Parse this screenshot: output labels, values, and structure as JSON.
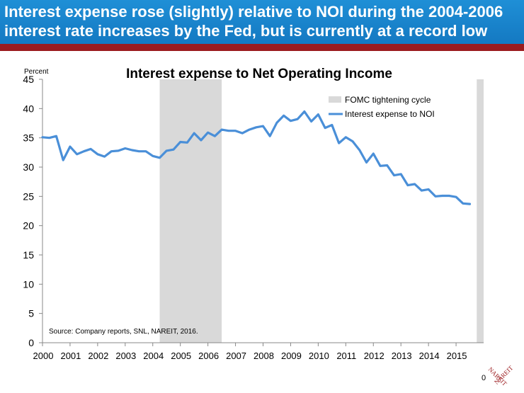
{
  "header": {
    "title": "Interest expense rose (slightly) relative to NOI during the 2004-2006\ninterest rate increases by the Fed, but is currently at a record low"
  },
  "footer": {
    "page_number": "0"
  },
  "logo": {
    "text_left": "NAREIT",
    "text_right": "NAREIT"
  },
  "colors": {
    "banner": "#1a85cf",
    "rule": "#9b1b1e",
    "line": "#4a8fd8",
    "shade": "#d9d9d9"
  },
  "chart_data": {
    "type": "line",
    "title": "Interest expense to Net Operating Income",
    "ylabel": "Percent",
    "xlabel": "",
    "source": "Source: Company reports, SNL, NAREIT, 2016.",
    "ylim": [
      0,
      45
    ],
    "yticks": [
      0,
      5,
      10,
      15,
      20,
      25,
      30,
      35,
      40,
      45
    ],
    "xlim": [
      2000,
      2016
    ],
    "xticks": [
      "2000",
      "2001",
      "2002",
      "2003",
      "2004",
      "2005",
      "2006",
      "2007",
      "2008",
      "2009",
      "2010",
      "2011",
      "2012",
      "2013",
      "2014",
      "2015"
    ],
    "legend_position": "top-right",
    "shaded_periods": [
      {
        "name": "FOMC tightening cycle",
        "start": 2004.25,
        "end": 2006.5
      },
      {
        "name": "FOMC tightening cycle",
        "start": 2015.75,
        "end": 2016.0
      }
    ],
    "series": [
      {
        "name": "Interest expense to NOI",
        "x": [
          2000.0,
          2000.25,
          2000.5,
          2000.75,
          2001.0,
          2001.25,
          2001.5,
          2001.75,
          2002.0,
          2002.25,
          2002.5,
          2002.75,
          2003.0,
          2003.25,
          2003.5,
          2003.75,
          2004.0,
          2004.25,
          2004.5,
          2004.75,
          2005.0,
          2005.25,
          2005.5,
          2005.75,
          2006.0,
          2006.25,
          2006.5,
          2006.75,
          2007.0,
          2007.25,
          2007.5,
          2007.75,
          2008.0,
          2008.25,
          2008.5,
          2008.75,
          2009.0,
          2009.25,
          2009.5,
          2009.75,
          2010.0,
          2010.25,
          2010.5,
          2010.75,
          2011.0,
          2011.25,
          2011.5,
          2011.75,
          2012.0,
          2012.25,
          2012.5,
          2012.75,
          2013.0,
          2013.25,
          2013.5,
          2013.75,
          2014.0,
          2014.25,
          2014.5,
          2014.75,
          2015.0,
          2015.25,
          2015.5
        ],
        "values": [
          35.1,
          35.0,
          35.3,
          31.2,
          33.5,
          32.2,
          32.7,
          33.1,
          32.2,
          31.8,
          32.7,
          32.8,
          33.2,
          32.9,
          32.7,
          32.7,
          31.9,
          31.6,
          32.8,
          33.0,
          34.3,
          34.2,
          35.8,
          34.6,
          35.9,
          35.3,
          36.4,
          36.2,
          36.2,
          35.8,
          36.4,
          36.8,
          37.0,
          35.3,
          37.6,
          38.8,
          37.9,
          38.2,
          39.5,
          37.8,
          39.0,
          36.7,
          37.2,
          34.1,
          35.1,
          34.4,
          32.9,
          30.8,
          32.3,
          30.2,
          30.3,
          28.6,
          28.8,
          26.9,
          27.1,
          26.0,
          26.2,
          25.0,
          25.1,
          25.1,
          24.9,
          23.8,
          23.7
        ]
      }
    ]
  }
}
